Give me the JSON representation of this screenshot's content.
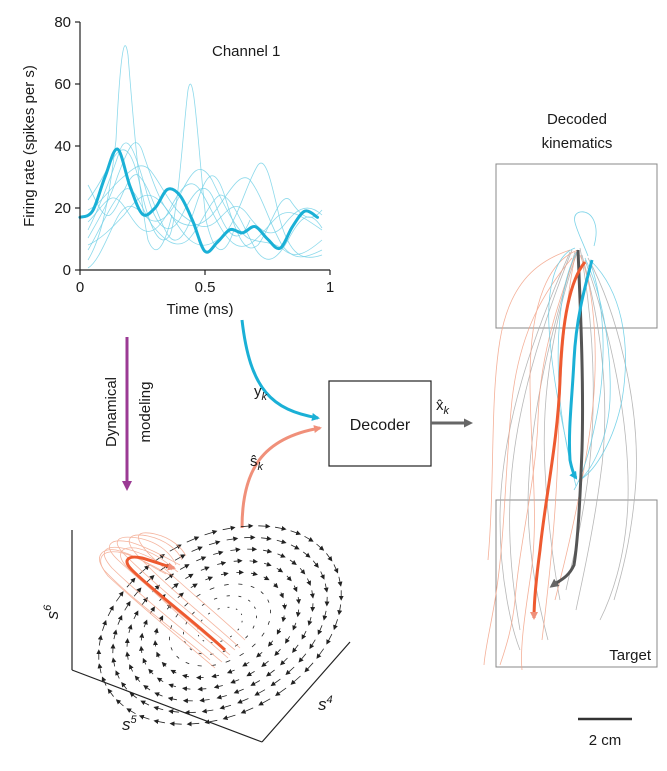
{
  "colors": {
    "neural": "#1ab0d6",
    "neural_light": "#6fcfe6",
    "latent": "#ee5a30",
    "latent_light": "#f3a88e",
    "decoded": "#555555",
    "decoded_light": "#b0b0b0",
    "modeling": "#9b3a94",
    "axis": "#222222"
  },
  "firing_panel": {
    "channel_label": "Channel 1",
    "ylabel": "Firing rate (spikes per s)",
    "xlabel": "Time (ms)",
    "y_ticks": [
      "0",
      "20",
      "40",
      "60",
      "80"
    ],
    "x_ticks": [
      "0",
      "0.5",
      "1"
    ]
  },
  "chart_data": {
    "type": "line",
    "xlabel": "Time (ms)",
    "ylabel": "Firing rate (spikes per s)",
    "xlim": [
      0,
      1
    ],
    "ylim": [
      0,
      80
    ],
    "series": [
      {
        "x": [
          0.0,
          0.05,
          0.1,
          0.15,
          0.2,
          0.25,
          0.3,
          0.35,
          0.4,
          0.45,
          0.5,
          0.55,
          0.6,
          0.65,
          0.7,
          0.75,
          0.8,
          0.85,
          0.9,
          0.95
        ],
        "values": [
          17,
          19,
          30,
          39,
          27,
          18,
          20,
          26,
          24,
          16,
          6,
          9,
          13,
          12,
          14,
          10,
          7,
          14,
          19,
          17
        ]
      }
    ]
  },
  "flow": {
    "y_label": "y",
    "y_sub": "k",
    "s_label": "ŝ",
    "s_sub": "k",
    "x_label": "x̂",
    "x_sub": "k",
    "decoder_label": "Decoder",
    "modeling_label_1": "Dynamical",
    "modeling_label_2": "modeling"
  },
  "latent_panel": {
    "axis_s6": "s",
    "axis_s6_sup": "6",
    "axis_s5": "s",
    "axis_s5_sup": "5",
    "axis_s4": "s",
    "axis_s4_sup": "4"
  },
  "kinematics_panel": {
    "title_1": "Decoded",
    "title_2": "kinematics",
    "target_label": "Target",
    "scale_label": "2 cm"
  }
}
